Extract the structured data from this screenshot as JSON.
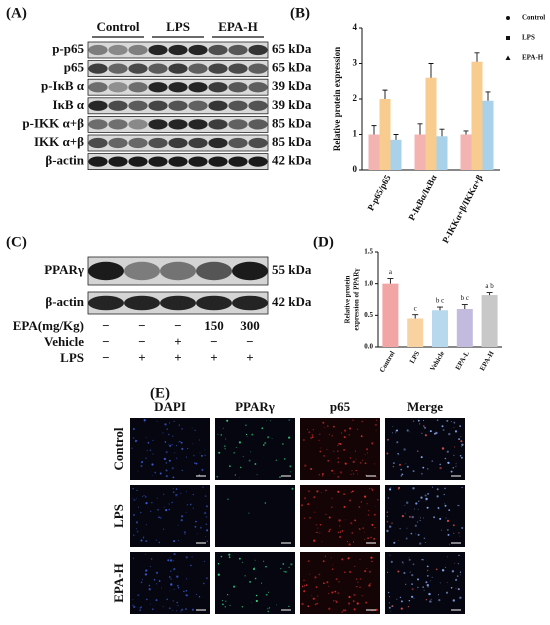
{
  "panel_labels": [
    "(A)",
    "(B)",
    "(C)",
    "(D)",
    "(E)"
  ],
  "western_a": {
    "groups": [
      "Control",
      "LPS",
      "EPA-H"
    ],
    "rows": [
      {
        "label": "p-p65",
        "size": "65 kDa"
      },
      {
        "label": "p65",
        "size": "65 kDa"
      },
      {
        "label": "p-IκB α",
        "size": "39 kDa"
      },
      {
        "label": "IκB α",
        "size": "39 kDa"
      },
      {
        "label": "p-IKK α+β",
        "size": "85 kDa"
      },
      {
        "label": "IKK α+β",
        "size": "85 kDa"
      },
      {
        "label": "β-actin",
        "size": "42 kDa"
      }
    ]
  },
  "western_c": {
    "rows": [
      {
        "label": "PPARγ",
        "size": "55 kDa"
      },
      {
        "label": "β-actin",
        "size": "42 kDa"
      }
    ],
    "treatments": [
      {
        "label": "EPA(mg/Kg)",
        "marks": [
          "−",
          "−",
          "−",
          "150",
          "300"
        ]
      },
      {
        "label": "Vehicle",
        "marks": [
          "−",
          "−",
          "+",
          "−",
          "−"
        ]
      },
      {
        "label": "LPS",
        "marks": [
          "−",
          "+",
          "+",
          "+",
          "+"
        ]
      }
    ]
  },
  "chart_data": [
    {
      "type": "grouped_bar",
      "ylabel": "Relative protein expression",
      "categories": [
        "P-p65/p65",
        "P-IκBα/IκBα",
        "P-IKKα+β/IKKα+β"
      ],
      "series": [
        {
          "name": "Control",
          "color": "#f3b3b0",
          "values": [
            1.0,
            1.0,
            1.0
          ],
          "errors": [
            0.25,
            0.3,
            0.1
          ]
        },
        {
          "name": "LPS",
          "color": "#f8cb8e",
          "values": [
            2.0,
            2.6,
            3.05
          ],
          "errors": [
            0.25,
            0.4,
            0.25
          ]
        },
        {
          "name": "EPA-H",
          "color": "#a9d1ea",
          "values": [
            0.85,
            0.95,
            1.95
          ],
          "errors": [
            0.15,
            0.2,
            0.25
          ]
        }
      ],
      "ylim": [
        0,
        4
      ],
      "yticks": [
        0,
        1,
        2,
        3,
        4
      ],
      "legend": "right"
    },
    {
      "type": "bar",
      "ylabel_lines": [
        "Relative protein",
        "expression of PPARγ"
      ],
      "categories": [
        "Control",
        "LPS",
        "Vehicle",
        "EPA-L",
        "EPA-H"
      ],
      "values": [
        1.0,
        0.45,
        0.58,
        0.6,
        0.82
      ],
      "errors": [
        0.08,
        0.06,
        0.05,
        0.07,
        0.04
      ],
      "colors": [
        "#f2a5a5",
        "#f8d2a0",
        "#b8d8ee",
        "#c3bbdd",
        "#c8c8c8"
      ],
      "annotations": [
        "a",
        "c",
        "b c",
        "b c",
        "a b"
      ],
      "ylim": [
        0,
        1.5
      ],
      "yticks": [
        {
          "value": 0,
          "label": "0.0"
        },
        {
          "value": 0.5,
          "label": "0.5"
        },
        {
          "value": 1,
          "label": "1.0"
        },
        {
          "value": 1.5,
          "label": "1.5"
        }
      ]
    }
  ],
  "microscopy": {
    "columns": [
      "DAPI",
      "PPARγ",
      "p65",
      "Merge"
    ],
    "rows": [
      "Control",
      "LPS",
      "EPA-H"
    ]
  }
}
